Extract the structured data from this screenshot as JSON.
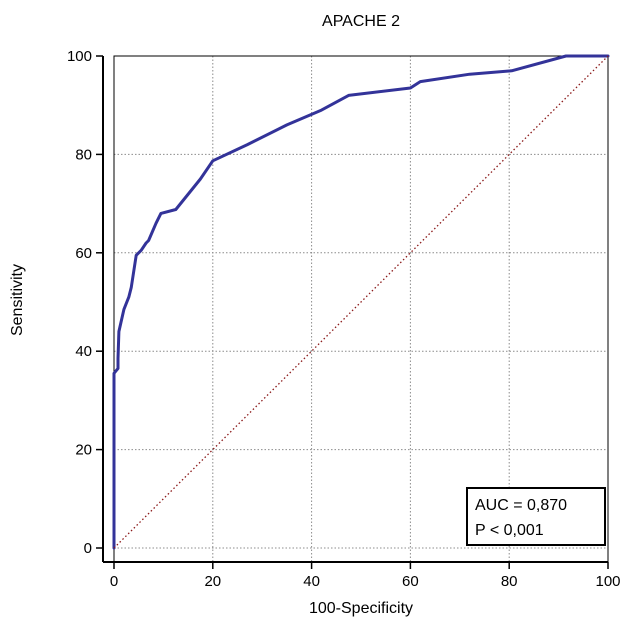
{
  "chart_data": {
    "type": "line",
    "title": "APACHE 2",
    "xlabel": "100-Specificity",
    "ylabel": "Sensitivity",
    "xlim": [
      0,
      100
    ],
    "ylim": [
      0,
      100
    ],
    "xticks": [
      0,
      20,
      40,
      60,
      80,
      100
    ],
    "yticks": [
      0,
      20,
      40,
      60,
      80,
      100
    ],
    "grid": true,
    "series": [
      {
        "color": "#333399",
        "style": "solid",
        "points": [
          [
            0,
            0
          ],
          [
            0,
            35.5
          ],
          [
            0.8,
            36.5
          ],
          [
            0.8,
            38.5
          ],
          [
            1,
            44
          ],
          [
            2,
            48.5
          ],
          [
            3,
            51
          ],
          [
            3.5,
            53
          ],
          [
            4.5,
            59.5
          ],
          [
            5.5,
            60.5
          ],
          [
            6.5,
            62
          ],
          [
            7,
            62.5
          ],
          [
            8.5,
            66
          ],
          [
            9.5,
            68
          ],
          [
            12.5,
            68.8
          ],
          [
            17.5,
            75
          ],
          [
            20,
            78.7
          ],
          [
            27,
            82
          ],
          [
            35,
            86
          ],
          [
            42,
            89
          ],
          [
            47.5,
            92
          ],
          [
            60,
            93.5
          ],
          [
            62,
            94.8
          ],
          [
            72,
            96.3
          ],
          [
            80.5,
            97
          ],
          [
            91.5,
            100
          ],
          [
            100,
            100
          ]
        ]
      },
      {
        "color": "#8b1a1a",
        "style": "dotted",
        "points": [
          [
            0,
            0
          ],
          [
            100,
            100
          ]
        ]
      }
    ],
    "annotations": {
      "auc_text": "AUC = 0,870",
      "p_text": "P < 0,001",
      "placement": "bottom-right"
    }
  }
}
